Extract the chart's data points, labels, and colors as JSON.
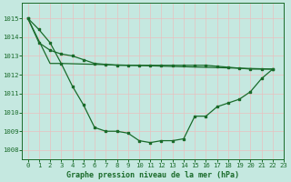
{
  "xlabel": "Graphe pression niveau de la mer (hPa)",
  "background_color": "#c5e8e0",
  "grid_color_v": "#e8c0c0",
  "grid_color_h": "#e8c0c0",
  "line_color": "#1a6b2a",
  "ylim": [
    1007.5,
    1015.8
  ],
  "xlim": [
    -0.5,
    23
  ],
  "yticks": [
    1008,
    1009,
    1010,
    1011,
    1012,
    1013,
    1014,
    1015
  ],
  "xticks": [
    0,
    1,
    2,
    3,
    4,
    5,
    6,
    7,
    8,
    9,
    10,
    11,
    12,
    13,
    14,
    15,
    16,
    17,
    18,
    19,
    20,
    21,
    22,
    23
  ],
  "series1_x": [
    0,
    1,
    2,
    3,
    4,
    5,
    6,
    7,
    8,
    9,
    10,
    11,
    12,
    13,
    14,
    15,
    16,
    17,
    18,
    19,
    20,
    21,
    22
  ],
  "series1_y": [
    1015.0,
    1014.4,
    1013.7,
    1012.6,
    1011.4,
    1010.4,
    1009.2,
    1009.0,
    1009.0,
    1008.9,
    1008.5,
    1008.4,
    1008.5,
    1008.5,
    1008.6,
    1009.8,
    1009.8,
    1010.3,
    1010.5,
    1010.7,
    1011.1,
    1011.8,
    1012.3
  ],
  "series2_x": [
    0,
    1,
    2,
    3,
    4,
    5,
    6,
    7,
    8,
    9,
    10,
    11,
    12,
    13,
    14,
    15,
    16,
    17,
    18,
    19,
    20,
    21,
    22
  ],
  "series2_y": [
    1015.0,
    1013.7,
    1013.3,
    1013.1,
    1013.0,
    1012.8,
    1012.6,
    1012.55,
    1012.5,
    1012.5,
    1012.5,
    1012.5,
    1012.5,
    1012.5,
    1012.5,
    1012.5,
    1012.5,
    1012.45,
    1012.4,
    1012.35,
    1012.3,
    1012.3,
    1012.3
  ],
  "series3_x": [
    0,
    2,
    3,
    22
  ],
  "series3_y": [
    1015.0,
    1012.6,
    1012.6,
    1012.3
  ],
  "xlabel_fontsize": 6.0,
  "tick_fontsize": 5.2
}
